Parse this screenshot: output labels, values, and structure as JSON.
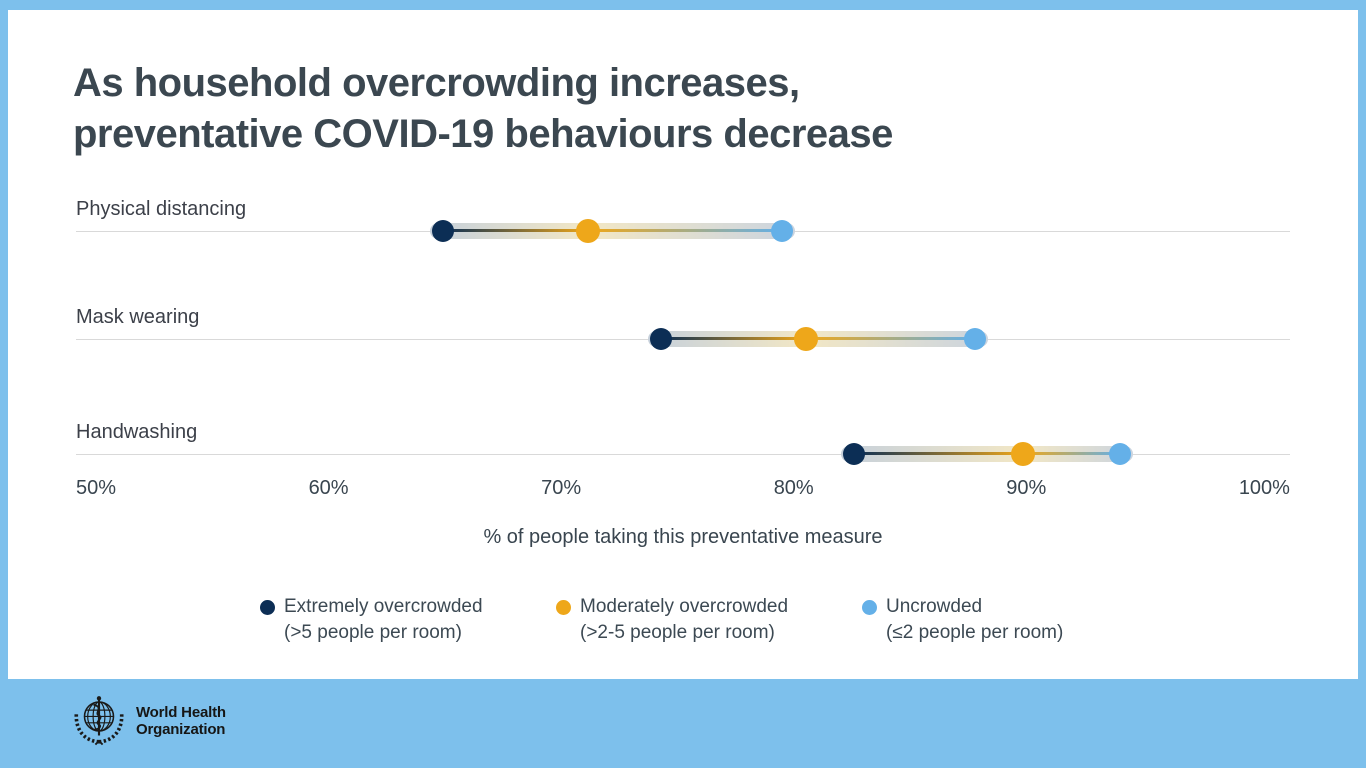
{
  "title": {
    "line1": "As household overcrowding increases,",
    "line2": "preventative COVID-19 behaviours decrease"
  },
  "chart_data": {
    "type": "dumbbell-dot-plot",
    "categories": [
      "Physical distancing",
      "Mask wearing",
      "Handwashing"
    ],
    "series": [
      {
        "name": "Extremely overcrowded (>5 people per room)",
        "color": "#0C2E55",
        "values": [
          65,
          74,
          82
        ]
      },
      {
        "name": "Moderately overcrowded (>2-5 people per room)",
        "color": "#EEA71A",
        "values": [
          71,
          80,
          89
        ]
      },
      {
        "name": "Uncrowded (≤2 people per room)",
        "color": "#64B0E8",
        "values": [
          79,
          87,
          93
        ]
      }
    ],
    "xlabel": "% of people taking this preventative measure",
    "x_ticks": [
      "50%",
      "60%",
      "70%",
      "80%",
      "90%",
      "100%"
    ],
    "xlim": [
      50,
      100
    ],
    "grid": "horizontal-row-lines",
    "legend_position": "bottom",
    "band_colors": {
      "edge": "#C6D0DB",
      "middle": "#F2E7C5",
      "edge2": "#CBD4DF"
    }
  },
  "legend": [
    {
      "label": "Extremely overcrowded",
      "sublabel": "(>5 people per room)",
      "color": "#0C2E55"
    },
    {
      "label": "Moderately overcrowded",
      "sublabel": "(>2-5 people per room)",
      "color": "#EEA71A"
    },
    {
      "label": "Uncrowded",
      "sublabel": "(≤2 people per room)",
      "color": "#64B0E8"
    }
  ],
  "footer": {
    "org_line1": "World Health",
    "org_line2": "Organization"
  },
  "colors": {
    "background": "#7DC0EC",
    "card": "#FFFFFF",
    "title_text": "#3B4750",
    "gridline": "#D9D9D9"
  },
  "layout_rows": [
    {
      "grid_y": 221
    },
    {
      "grid_y": 329
    },
    {
      "grid_y": 444
    }
  ]
}
